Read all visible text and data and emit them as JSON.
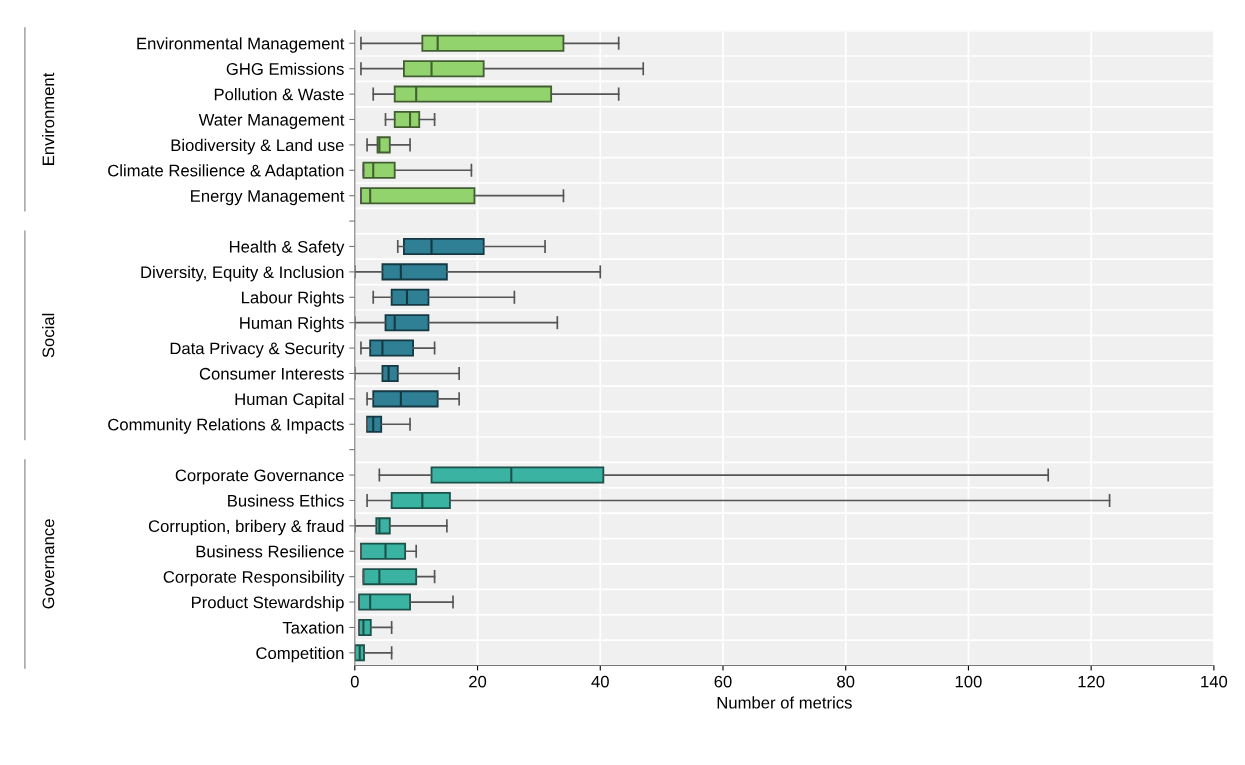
{
  "chart_data": {
    "type": "box",
    "orientation": "horizontal",
    "xlabel": "Number of metrics",
    "categories": [
      "Environmental Management",
      "GHG Emissions",
      "Pollution & Waste",
      "Water Management",
      "Biodiversity & Land use",
      "Climate Resilience & Adaptation",
      "Energy Management",
      null,
      "Health & Safety",
      "Diversity, Equity & Inclusion",
      "Labour Rights",
      "Human Rights",
      "Data Privacy & Security",
      "Consumer Interests",
      "Human Capital",
      "Community Relations & Impacts",
      null,
      "Corporate Governance",
      "Business Ethics",
      "Corruption, bribery & fraud",
      "Business Resilience",
      "Corporate Responsibility",
      "Product Stewardship",
      "Taxation",
      "Competition"
    ],
    "series": [
      {
        "color": "#92d36e",
        "boxes": [
          {
            "low": 1,
            "q1": 11,
            "median": 13.5,
            "q3": 34,
            "high": 43
          },
          {
            "low": 1,
            "q1": 8,
            "median": 12.5,
            "q3": 21,
            "high": 47
          },
          {
            "low": 3,
            "q1": 6.5,
            "median": 10,
            "q3": 32,
            "high": 43
          },
          {
            "low": 5,
            "q1": 6.5,
            "median": 9,
            "q3": 10.5,
            "high": 13
          },
          {
            "low": 2,
            "q1": 3.7,
            "median": 4,
            "q3": 5.7,
            "high": 9
          },
          {
            "low": 1.4,
            "q1": 1.4,
            "median": 3,
            "q3": 6.5,
            "high": 19
          },
          {
            "low": 1,
            "q1": 1,
            "median": 2.5,
            "q3": 19.5,
            "high": 34
          },
          null,
          null,
          null,
          null,
          null,
          null,
          null,
          null,
          null,
          null,
          null,
          null,
          null,
          null,
          null,
          null,
          null,
          null
        ]
      },
      {
        "color": "#2f7f95",
        "boxes": [
          null,
          null,
          null,
          null,
          null,
          null,
          null,
          null,
          {
            "low": 7,
            "q1": 8,
            "median": 12.5,
            "q3": 21,
            "high": 31
          },
          {
            "low": 0,
            "q1": 4.5,
            "median": 7.5,
            "q3": 15,
            "high": 40
          },
          {
            "low": 3,
            "q1": 6,
            "median": 8.5,
            "q3": 12,
            "high": 26
          },
          {
            "low": 0,
            "q1": 5,
            "median": 6.5,
            "q3": 12,
            "high": 33
          },
          {
            "low": 1,
            "q1": 2.5,
            "median": 4.5,
            "q3": 9.5,
            "high": 13
          },
          {
            "low": 0,
            "q1": 4.5,
            "median": 5.5,
            "q3": 7,
            "high": 17
          },
          {
            "low": 2,
            "q1": 3,
            "median": 7.5,
            "q3": 13.5,
            "high": 17
          },
          {
            "low": 2,
            "q1": 2,
            "median": 3,
            "q3": 4.3,
            "high": 9
          },
          null,
          null,
          null,
          null,
          null,
          null,
          null,
          null,
          null
        ]
      },
      {
        "color": "#3bb3a3",
        "boxes": [
          null,
          null,
          null,
          null,
          null,
          null,
          null,
          null,
          null,
          null,
          null,
          null,
          null,
          null,
          null,
          null,
          null,
          {
            "low": 4,
            "q1": 12.5,
            "median": 25.5,
            "q3": 40.5,
            "high": 113
          },
          {
            "low": 2,
            "q1": 6,
            "median": 11,
            "q3": 15.5,
            "high": 123
          },
          {
            "low": 0,
            "q1": 3.5,
            "median": 4,
            "q3": 5.7,
            "high": 15
          },
          {
            "low": 1,
            "q1": 1,
            "median": 5,
            "q3": 8.2,
            "high": 10
          },
          {
            "low": 1.4,
            "q1": 1.4,
            "median": 4,
            "q3": 10,
            "high": 13
          },
          {
            "low": 0.7,
            "q1": 0.7,
            "median": 2.5,
            "q3": 9,
            "high": 16
          },
          {
            "low": 0.7,
            "q1": 0.7,
            "median": 1.4,
            "q3": 2.6,
            "high": 6
          },
          {
            "low": 0,
            "q1": 0,
            "median": 0.8,
            "q3": 1.5,
            "high": 6
          }
        ]
      }
    ],
    "xlim": [
      0,
      140
    ],
    "xticks": [
      0,
      20,
      40,
      60,
      80,
      100,
      120,
      140
    ],
    "grid": true,
    "annotations": [
      "Environment",
      "Social",
      "Governance"
    ]
  }
}
